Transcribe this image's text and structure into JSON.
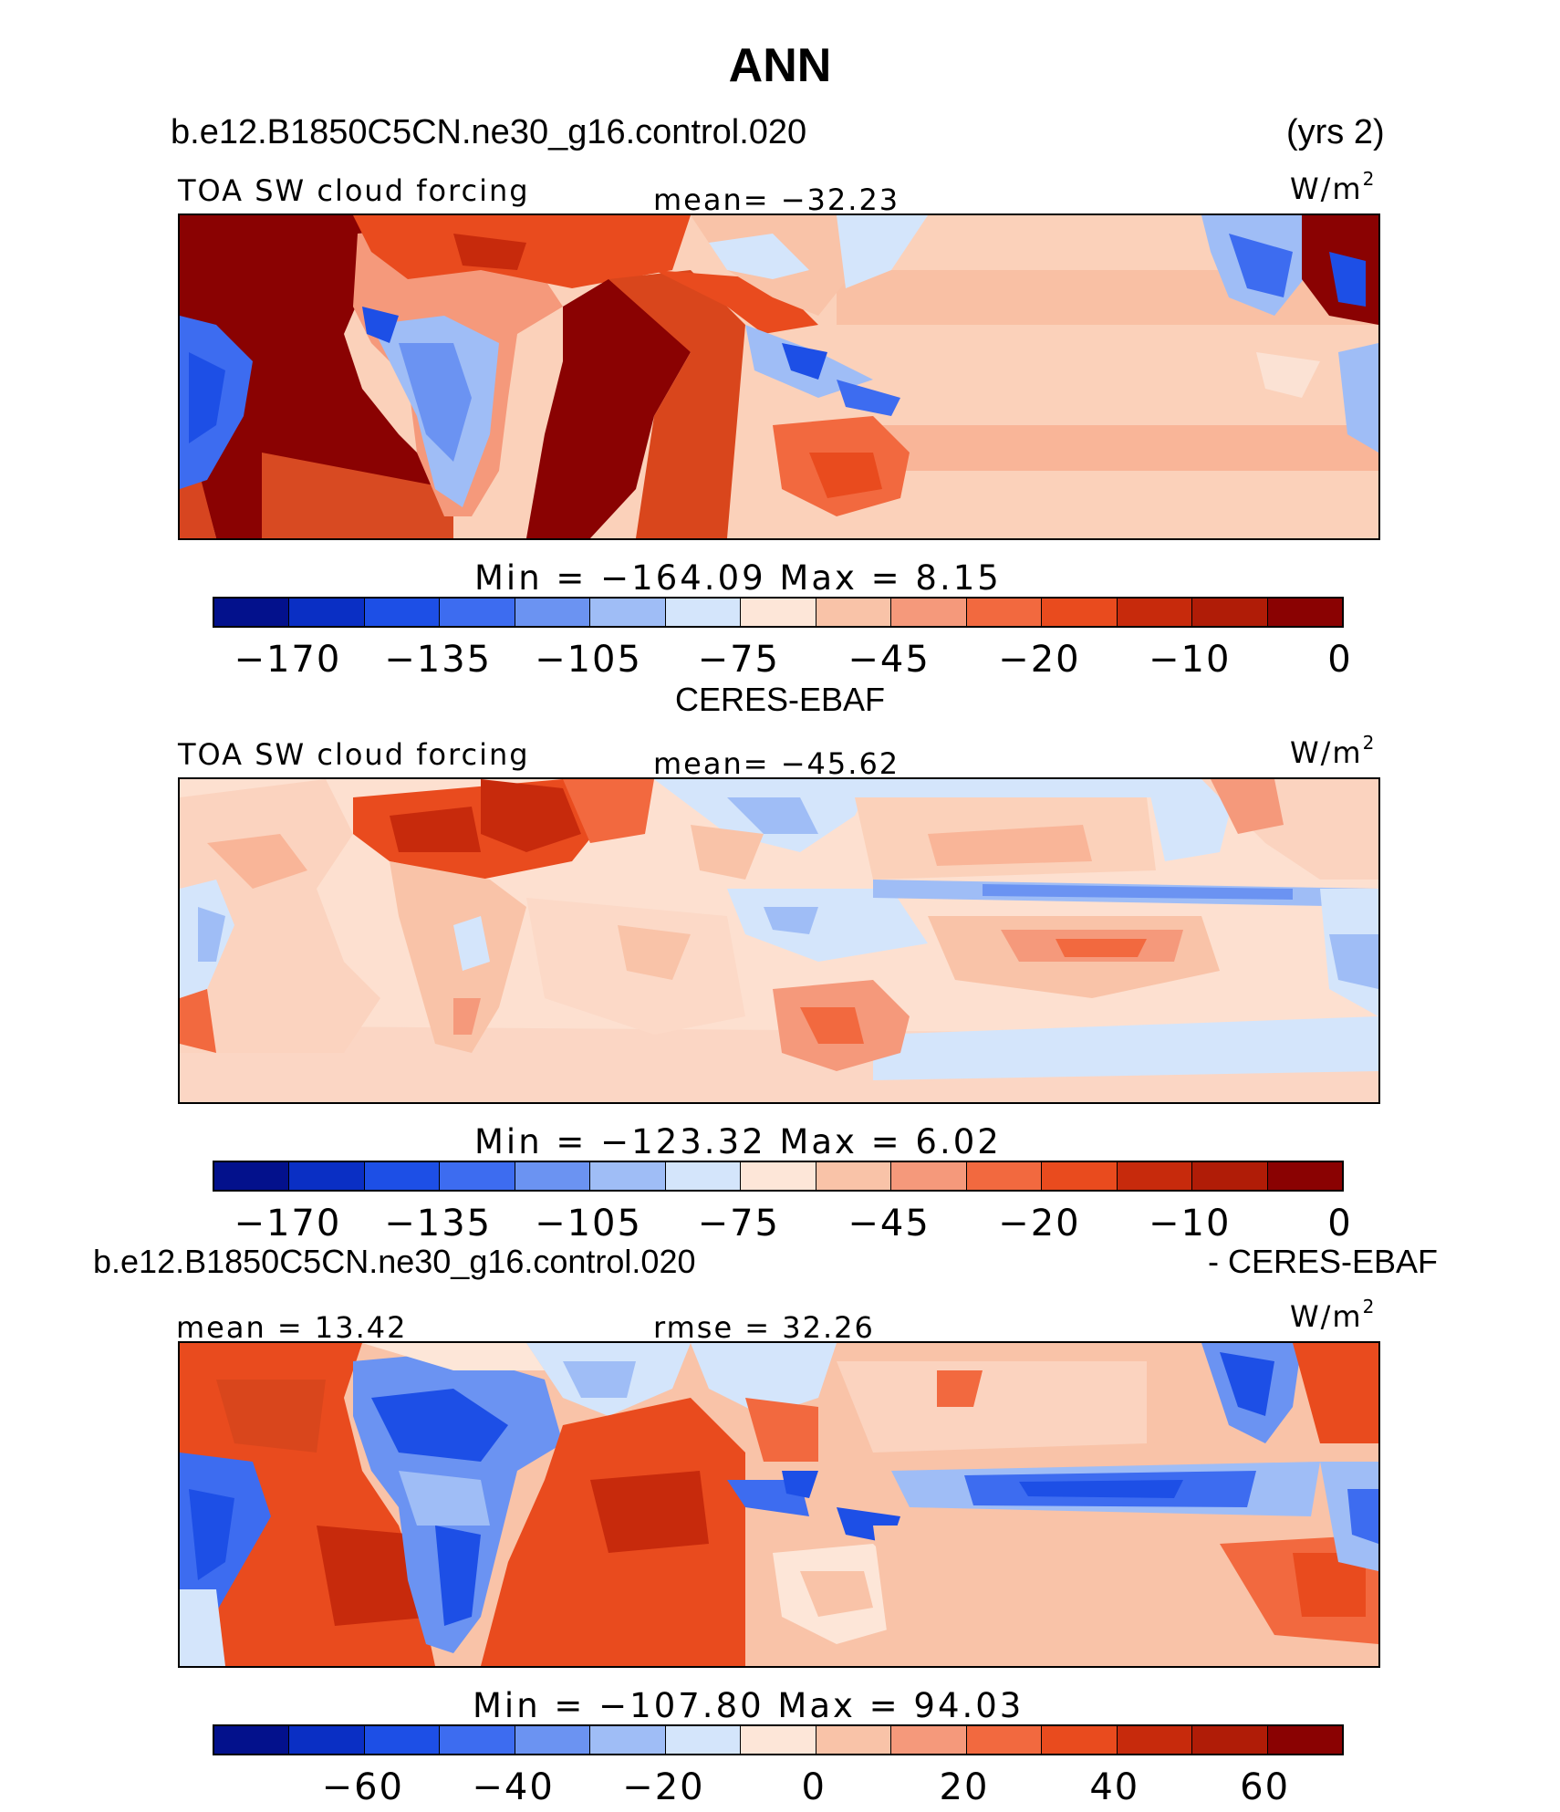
{
  "figure_title": "ANN",
  "case_name": "b.e12.B1850C5CN.ne30_g16.control.020",
  "years_label": "(yrs 2)",
  "panels": [
    {
      "heading": "",
      "variable": "TOA SW cloud forcing",
      "mean_text": "mean= −32.23",
      "units": "W/m",
      "units_sup": "2",
      "minmax_text": "Min  =  −164.09  Max  =     8.15",
      "ticks": [
        "−170",
        "−135",
        "−105",
        "−75",
        "−45",
        "−20",
        "−10",
        "0"
      ]
    },
    {
      "heading": "CERES-EBAF",
      "variable": "TOA SW cloud forcing",
      "mean_text": "mean= −45.62",
      "units": "W/m",
      "units_sup": "2",
      "minmax_text": "Min  =  −123.32  Max  =     6.02",
      "ticks": [
        "−170",
        "−135",
        "−105",
        "−75",
        "−45",
        "−20",
        "−10",
        "0"
      ]
    },
    {
      "heading_left": "b.e12.B1850C5CN.ne30_g16.control.020",
      "heading_right": "- CERES-EBAF",
      "mean_text": "mean  =   13.42",
      "rmse_text": "rmse  =   32.26",
      "units": "W/m",
      "units_sup": "2",
      "minmax_text": "Min  =  −107.80  Max  =   94.03",
      "ticks": [
        "−60",
        "−40",
        "−20",
        "0",
        "20",
        "40",
        "60"
      ]
    }
  ],
  "colorbar_colors": [
    "#03118c",
    "#0a2fc4",
    "#1d4fe6",
    "#3d6cf0",
    "#6b93f2",
    "#9fbdf6",
    "#d4e5fb",
    "#fde6d8",
    "#f9c3a8",
    "#f5997b",
    "#f2693f",
    "#e94b1e",
    "#c72a0c",
    "#b01c07",
    "#8a0202"
  ]
}
